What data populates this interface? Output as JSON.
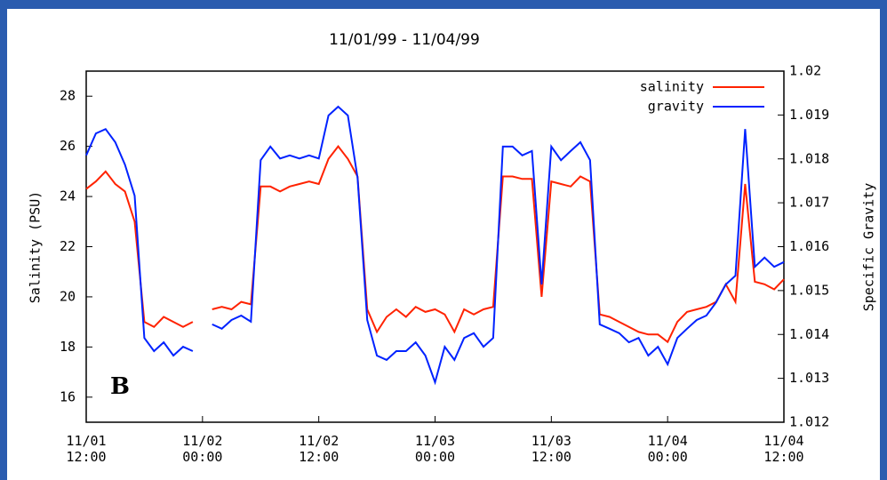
{
  "chart_data": {
    "type": "line",
    "title": "11/01/99 - 11/04/99",
    "y_label": "Salinity (PSU)",
    "y2_label": "Specific Gravity",
    "annotation": "B",
    "x": [
      "11/01 12:00",
      "11/01 13:00",
      "11/01 14:00",
      "11/01 15:00",
      "11/01 16:00",
      "11/01 17:00",
      "11/01 18:00",
      "11/01 19:00",
      "11/01 20:00",
      "11/01 21:00",
      "11/01 22:00",
      "11/01 23:00",
      "11/02 00:00",
      "11/02 01:00",
      "11/02 02:00",
      "11/02 03:00",
      "11/02 04:00",
      "11/02 05:00",
      "11/02 06:00",
      "11/02 07:00",
      "11/02 08:00",
      "11/02 09:00",
      "11/02 10:00",
      "11/02 11:00",
      "11/02 12:00",
      "11/02 13:00",
      "11/02 14:00",
      "11/02 15:00",
      "11/02 16:00",
      "11/02 17:00",
      "11/02 18:00",
      "11/02 19:00",
      "11/02 20:00",
      "11/02 21:00",
      "11/02 22:00",
      "11/02 23:00",
      "11/03 00:00",
      "11/03 01:00",
      "11/03 02:00",
      "11/03 03:00",
      "11/03 04:00",
      "11/03 05:00",
      "11/03 06:00",
      "11/03 07:00",
      "11/03 08:00",
      "11/03 09:00",
      "11/03 10:00",
      "11/03 11:00",
      "11/03 12:00",
      "11/03 13:00",
      "11/03 14:00",
      "11/03 15:00",
      "11/03 16:00",
      "11/03 17:00",
      "11/03 18:00",
      "11/03 19:00",
      "11/03 20:00",
      "11/03 21:00",
      "11/03 22:00",
      "11/03 23:00",
      "11/04 00:00",
      "11/04 01:00",
      "11/04 02:00",
      "11/04 03:00",
      "11/04 04:00",
      "11/04 05:00",
      "11/04 06:00",
      "11/04 07:00",
      "11/04 08:00",
      "11/04 09:00",
      "11/04 10:00",
      "11/04 11:00",
      "11/04 12:00"
    ],
    "xlim": [
      "11/01 12:00",
      "11/04 12:00"
    ],
    "xticks": [
      "11/01 12:00",
      "11/02 00:00",
      "11/02 12:00",
      "11/03 00:00",
      "11/03 12:00",
      "11/04 00:00",
      "11/04 12:00"
    ],
    "ylim": [
      15,
      29
    ],
    "yticks": [
      16,
      18,
      20,
      22,
      24,
      26,
      28
    ],
    "y2lim": [
      1.012,
      1.02
    ],
    "y2ticks": [
      1.012,
      1.013,
      1.014,
      1.015,
      1.016,
      1.017,
      1.018,
      1.019,
      1.02
    ],
    "legend": "upper right",
    "series": [
      {
        "name": "salinity",
        "color": "#ff2200",
        "axis": "y",
        "values": [
          24.3,
          24.6,
          25,
          24.5,
          24.2,
          23,
          19,
          18.8,
          19.2,
          19,
          18.8,
          19,
          null,
          19.5,
          19.6,
          19.5,
          19.8,
          19.7,
          24.4,
          24.4,
          24.2,
          24.4,
          24.5,
          24.6,
          24.5,
          25.5,
          26,
          25.5,
          24.8,
          19.5,
          18.6,
          19.2,
          19.5,
          19.2,
          19.6,
          19.4,
          19.5,
          19.3,
          18.6,
          19.5,
          19.3,
          19.5,
          19.6,
          24.8,
          24.8,
          24.7,
          24.7,
          20,
          24.6,
          24.5,
          24.4,
          24.8,
          24.6,
          19.3,
          19.2,
          19,
          18.8,
          18.6,
          18.5,
          18.5,
          18.2,
          19,
          19.4,
          19.5,
          19.6,
          19.8,
          20.5,
          19.8,
          24.5,
          20.6,
          20.5,
          20.3,
          20.7
        ]
      },
      {
        "name": "gravity",
        "color": "#0022ff",
        "axis": "y2",
        "values": [
          1.01808,
          1.01858,
          1.01868,
          1.01838,
          1.01787,
          1.01716,
          1.01392,
          1.01362,
          1.01382,
          1.01352,
          1.01372,
          1.01362,
          null,
          1.01423,
          1.01413,
          1.01433,
          1.01443,
          1.01429,
          1.01797,
          1.01828,
          1.01801,
          1.01808,
          1.01801,
          1.01808,
          1.01801,
          1.01899,
          1.01919,
          1.01899,
          1.01757,
          1.01433,
          1.01352,
          1.01342,
          1.01362,
          1.01362,
          1.01382,
          1.01352,
          1.01291,
          1.01372,
          1.01342,
          1.01392,
          1.01403,
          1.01372,
          1.01392,
          1.01828,
          1.01828,
          1.01808,
          1.01818,
          1.01514,
          1.01828,
          1.01797,
          1.01818,
          1.01838,
          1.01797,
          1.01423,
          1.01413,
          1.01403,
          1.01382,
          1.01392,
          1.01352,
          1.01372,
          1.01332,
          1.01392,
          1.01413,
          1.01433,
          1.01443,
          1.01473,
          1.01514,
          1.01534,
          1.01868,
          1.01554,
          1.01575,
          1.01554,
          1.01565
        ]
      }
    ]
  }
}
